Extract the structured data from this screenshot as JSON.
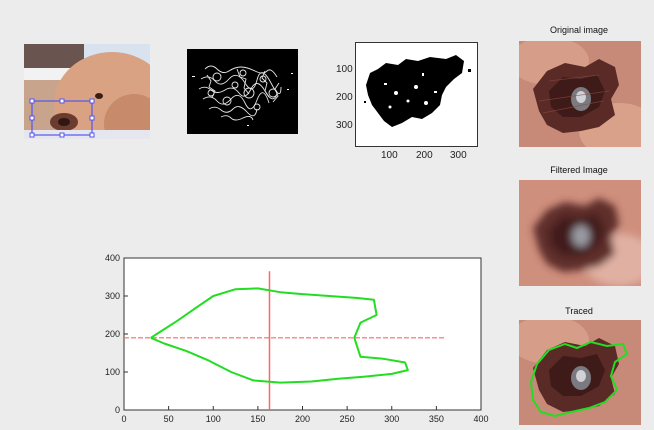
{
  "panels": {
    "original_caption": "Original image",
    "filtered_caption": "Filtered Image",
    "traced_caption": "Traced"
  },
  "binary_axes": {
    "y_ticks": [
      "100",
      "200",
      "300"
    ],
    "x_ticks": [
      "100",
      "200",
      "300"
    ]
  },
  "chart_data": {
    "type": "line",
    "title": "",
    "xlabel": "",
    "ylabel": "",
    "xlim": [
      0,
      400
    ],
    "ylim": [
      0,
      400
    ],
    "x_ticks": [
      0,
      50,
      100,
      150,
      200,
      250,
      300,
      350,
      400
    ],
    "y_ticks": [
      0,
      100,
      200,
      300,
      400
    ],
    "grid": false,
    "series": [
      {
        "color": "#22dd22",
        "points": [
          [
            30,
            190
          ],
          [
            40,
            205
          ],
          [
            60,
            235
          ],
          [
            80,
            268
          ],
          [
            100,
            300
          ],
          [
            125,
            318
          ],
          [
            150,
            320
          ],
          [
            175,
            310
          ],
          [
            200,
            305
          ],
          [
            230,
            300
          ],
          [
            260,
            295
          ],
          [
            280,
            290
          ],
          [
            283,
            250
          ],
          [
            265,
            230
          ],
          [
            258,
            190
          ],
          [
            265,
            140
          ],
          [
            290,
            135
          ],
          [
            315,
            125
          ],
          [
            318,
            105
          ],
          [
            300,
            95
          ],
          [
            270,
            88
          ],
          [
            240,
            82
          ],
          [
            210,
            75
          ],
          [
            175,
            72
          ],
          [
            145,
            78
          ],
          [
            120,
            100
          ],
          [
            95,
            130
          ],
          [
            70,
            155
          ],
          [
            45,
            175
          ],
          [
            30,
            190
          ]
        ]
      }
    ],
    "crosshair": {
      "x": 163,
      "y": 190,
      "color": "#ff6666",
      "x_range": [
        0,
        360
      ],
      "y_range": [
        0,
        365
      ]
    }
  },
  "colors": {
    "background": "#ececec",
    "contour": "#22dd22",
    "crosshair": "#ff6666",
    "roi_box": "#5555ee"
  }
}
